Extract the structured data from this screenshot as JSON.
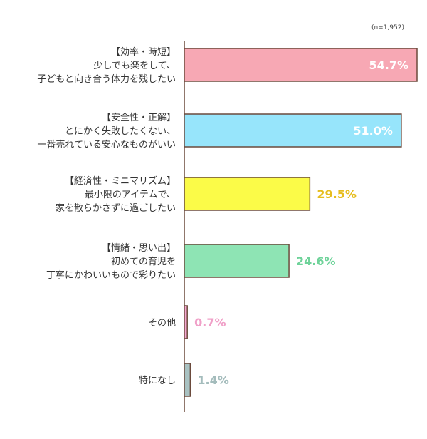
{
  "chart_data": {
    "type": "bar",
    "orientation": "horizontal",
    "note": "(n=1,952)",
    "unit": "%",
    "categories": [
      [
        "【効率・時短】",
        "少しでも楽をして、",
        "子どもと向き合う体力を残したい"
      ],
      [
        "【安全性・正解】",
        "とにかく失敗したくない、",
        "一番売れている安心なものがいい"
      ],
      [
        "【経済性・ミニマリズム】",
        "最小限のアイテムで、",
        "家を散らかさずに過ごしたい"
      ],
      [
        "【情緒・思い出】",
        "初めての育児を",
        "丁寧にかわいいもので彩りたい"
      ],
      [
        "その他"
      ],
      [
        "特になし"
      ]
    ],
    "values": [
      54.7,
      51.0,
      29.5,
      24.6,
      0.7,
      1.4
    ],
    "value_labels": [
      "54.7%",
      "51.0%",
      "29.5%",
      "24.6%",
      "0.7%",
      "1.4%"
    ],
    "label_inside_bar": [
      true,
      true,
      false,
      false,
      false,
      false
    ],
    "colors": [
      "#f7a8b4",
      "#97e5fb",
      "#fbfb48",
      "#8ee4b4",
      "#f6a6d2",
      "#a9c2c2"
    ],
    "label_colors": [
      "#ffffff",
      "#ffffff",
      "#e6bd1e",
      "#6fd39a",
      "#f0a0c8",
      "#a4bcbc"
    ],
    "xlim": [
      0,
      54.7
    ],
    "grid": false,
    "legend": "none"
  }
}
